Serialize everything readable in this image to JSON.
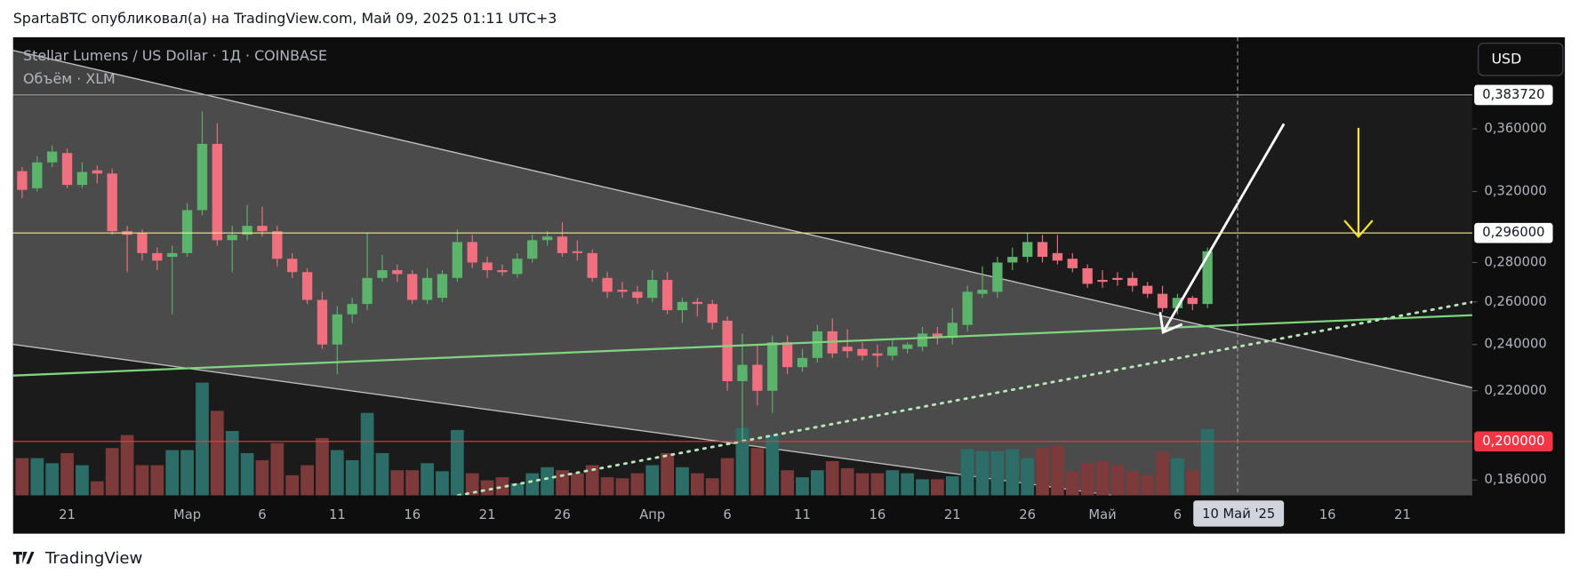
{
  "header": "SpartaBTC опубликовал(а) на TradingView.com, Май 09, 2025 01:11 UTC+3",
  "brand": "TradingView",
  "chart_data": {
    "type": "candlestick",
    "title": "Stellar Lumens / US Dollar · 1Д · COINBASE",
    "volume_label": "Объём · XLM",
    "currency": "USD",
    "crosshair_label": "10 Май '25",
    "log_scale": true,
    "up_color": "#5bb36c",
    "down_color": "#f0707f",
    "volume_up_color": "#2c6e67",
    "volume_down_color": "#7d3a3a",
    "ylim": [
      0.1807,
      0.4277
    ],
    "yticks": [
      {
        "value": 0.36,
        "label": "0,360000"
      },
      {
        "value": 0.32,
        "label": "0,320000"
      },
      {
        "value": 0.28,
        "label": "0,280000"
      },
      {
        "value": 0.26,
        "label": "0,260000"
      },
      {
        "value": 0.24,
        "label": "0,240000"
      },
      {
        "value": 0.22,
        "label": "0,220000"
      },
      {
        "value": 0.186,
        "label": "0,186000"
      }
    ],
    "price_lines": [
      {
        "value": 0.38372,
        "label": "0,383720",
        "color": "#9e9e9e"
      },
      {
        "value": 0.296,
        "label": "0,296000",
        "color": "#f5e9a0"
      },
      {
        "value": 0.2,
        "label": "0,200000",
        "color": "#f23645"
      }
    ],
    "categories": [
      null,
      null,
      null,
      "21",
      null,
      null,
      null,
      null,
      null,
      null,
      null,
      "Мар",
      null,
      null,
      null,
      null,
      "6",
      null,
      null,
      null,
      null,
      "11",
      null,
      null,
      null,
      null,
      "16",
      null,
      null,
      null,
      null,
      "21",
      null,
      null,
      null,
      null,
      "26",
      null,
      null,
      null,
      null,
      null,
      "Апр",
      null,
      null,
      null,
      null,
      "6",
      null,
      null,
      null,
      null,
      "11",
      null,
      null,
      null,
      null,
      "16",
      null,
      null,
      null,
      null,
      "21",
      null,
      null,
      null,
      null,
      "26",
      null,
      null,
      null,
      null,
      "Май",
      null,
      null,
      null,
      null,
      "6",
      null,
      null,
      null,
      null,
      null,
      null,
      null,
      null,
      null,
      "16",
      null,
      null,
      null,
      null,
      "21",
      null,
      null,
      null,
      null
    ],
    "open": [
      0.3325,
      0.322,
      0.338,
      0.344,
      0.324,
      0.333,
      0.331,
      0.297,
      0.296,
      0.285,
      0.283,
      0.285,
      0.309,
      0.35,
      0.292,
      0.295,
      0.3,
      0.297,
      0.282,
      0.275,
      0.261,
      0.24,
      0.254,
      0.259,
      0.272,
      0.276,
      0.274,
      0.261,
      0.262,
      0.272,
      0.291,
      0.28,
      0.276,
      0.274,
      0.282,
      0.292,
      0.294,
      0.286,
      0.285,
      0.272,
      0.266,
      0.265,
      0.262,
      0.271,
      0.256,
      0.26,
      0.259,
      0.251,
      0.224,
      0.231,
      0.22,
      0.241,
      0.23,
      0.234,
      0.246,
      0.239,
      0.238,
      0.236,
      0.235,
      0.238,
      0.239,
      0.245,
      0.243,
      0.249,
      0.264,
      0.265,
      0.28,
      0.283,
      0.291,
      0.285,
      0.282,
      0.277,
      0.271,
      0.272,
      0.272,
      0.268,
      0.264,
      0.257,
      0.262,
      0.259,
      null,
      null,
      null,
      null,
      null,
      null,
      null,
      null,
      null,
      null,
      null,
      null,
      null,
      null,
      null,
      null,
      null
    ],
    "high": [
      0.335,
      0.342,
      0.349,
      0.347,
      0.338,
      0.336,
      0.334,
      0.3,
      0.298,
      0.288,
      0.289,
      0.313,
      0.372,
      0.364,
      0.3,
      0.312,
      0.311,
      0.3,
      0.285,
      0.277,
      0.265,
      0.258,
      0.262,
      0.296,
      0.284,
      0.279,
      0.276,
      0.277,
      0.276,
      0.298,
      0.295,
      0.283,
      0.279,
      0.285,
      0.295,
      0.297,
      0.302,
      0.292,
      0.287,
      0.275,
      0.27,
      0.268,
      0.276,
      0.275,
      0.262,
      0.262,
      0.261,
      0.253,
      0.245,
      0.24,
      0.244,
      0.244,
      0.238,
      0.249,
      0.252,
      0.247,
      0.241,
      0.24,
      0.242,
      0.241,
      0.248,
      0.248,
      0.257,
      0.268,
      0.278,
      0.283,
      0.288,
      0.296,
      0.295,
      0.295,
      0.285,
      0.279,
      0.276,
      0.275,
      0.275,
      0.27,
      0.268,
      0.264,
      0.263,
      0.288,
      null,
      null,
      null,
      null,
      null,
      null,
      null,
      null,
      null,
      null,
      null,
      null,
      null,
      null,
      null,
      null,
      null
    ],
    "low": [
      0.316,
      0.32,
      0.335,
      0.322,
      0.322,
      0.325,
      0.295,
      0.275,
      0.281,
      0.276,
      0.254,
      0.283,
      0.306,
      0.289,
      0.275,
      0.292,
      0.294,
      0.278,
      0.272,
      0.259,
      0.238,
      0.227,
      0.25,
      0.256,
      0.27,
      0.27,
      0.259,
      0.259,
      0.26,
      0.27,
      0.277,
      0.272,
      0.273,
      0.272,
      0.28,
      0.289,
      0.283,
      0.281,
      0.27,
      0.262,
      0.262,
      0.259,
      0.26,
      0.254,
      0.25,
      0.253,
      0.247,
      0.22,
      0.2,
      0.214,
      0.211,
      0.227,
      0.228,
      0.232,
      0.234,
      0.234,
      0.233,
      0.23,
      0.233,
      0.236,
      0.237,
      0.24,
      0.24,
      0.246,
      0.262,
      0.262,
      0.276,
      0.28,
      0.28,
      0.279,
      0.275,
      0.267,
      0.267,
      0.268,
      0.265,
      0.262,
      0.255,
      0.254,
      0.256,
      0.257,
      null,
      null,
      null,
      null,
      null,
      null,
      null,
      null,
      null,
      null,
      null,
      null,
      null,
      null,
      null,
      null,
      null
    ],
    "close": [
      0.321,
      0.338,
      0.345,
      0.324,
      0.332,
      0.331,
      0.297,
      0.295,
      0.285,
      0.281,
      0.285,
      0.309,
      0.35,
      0.292,
      0.295,
      0.3,
      0.297,
      0.282,
      0.275,
      0.261,
      0.24,
      0.254,
      0.259,
      0.272,
      0.276,
      0.274,
      0.261,
      0.272,
      0.274,
      0.291,
      0.28,
      0.276,
      0.275,
      0.282,
      0.292,
      0.294,
      0.285,
      0.285,
      0.272,
      0.265,
      0.265,
      0.262,
      0.271,
      0.256,
      0.26,
      0.259,
      0.25,
      0.224,
      0.231,
      0.22,
      0.241,
      0.23,
      0.234,
      0.246,
      0.236,
      0.237,
      0.235,
      0.235,
      0.239,
      0.24,
      0.245,
      0.243,
      0.25,
      0.265,
      0.266,
      0.28,
      0.283,
      0.291,
      0.283,
      0.281,
      0.277,
      0.269,
      0.27,
      0.271,
      0.268,
      0.264,
      0.257,
      0.262,
      0.259,
      0.286,
      null,
      null,
      null,
      null,
      null,
      null,
      null,
      null,
      null,
      null,
      null,
      null,
      null,
      null,
      null,
      null,
      null
    ],
    "volume": [
      37,
      37,
      32,
      42,
      30,
      14,
      47,
      60,
      30,
      30,
      45,
      45,
      112,
      84,
      64,
      42,
      35,
      52,
      20,
      30,
      57,
      45,
      35,
      82,
      42,
      25,
      25,
      32,
      24,
      65,
      22,
      15,
      18,
      12,
      22,
      28,
      25,
      22,
      30,
      18,
      17,
      22,
      30,
      42,
      28,
      22,
      17,
      37,
      67,
      47,
      60,
      25,
      18,
      25,
      34,
      27,
      22,
      22,
      25,
      22,
      16,
      16,
      19,
      46,
      44,
      44,
      46,
      37,
      47,
      49,
      24,
      32,
      34,
      30,
      24,
      20,
      43,
      37,
      25,
      66,
      null,
      null,
      null,
      null,
      null,
      null,
      null,
      null,
      null,
      null,
      null,
      null,
      null,
      null,
      null,
      null,
      null
    ]
  }
}
